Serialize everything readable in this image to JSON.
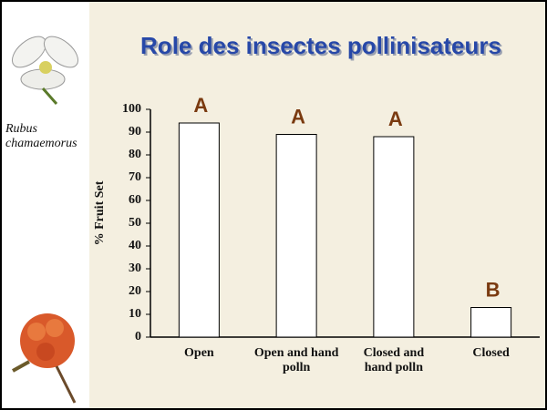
{
  "chart_data": {
    "type": "bar",
    "title": "Role des insectes pollinisateurs",
    "species": "Rubus chamaemorus",
    "y_label": "% Fruit Set",
    "categories": [
      "Open",
      "Open and hand polln",
      "Closed and hand polln",
      "Closed"
    ],
    "values": [
      94,
      89,
      88,
      13
    ],
    "annotations": [
      "A",
      "A",
      "A",
      "B"
    ],
    "color": "#ffffff",
    "ylim": [
      0,
      100
    ],
    "yticks": [
      0,
      10,
      20,
      30,
      40,
      50,
      60,
      70,
      80,
      90,
      100
    ]
  }
}
